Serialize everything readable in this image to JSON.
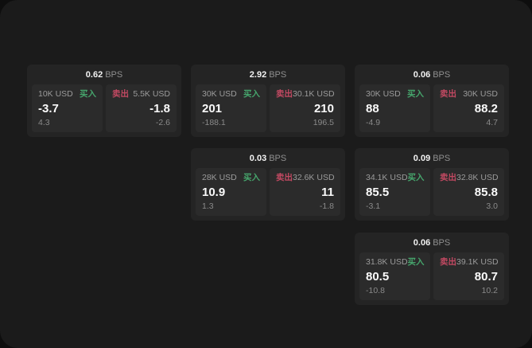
{
  "app": {
    "buy_label": "买入",
    "sell_label": "卖出",
    "unit_label": "BPS"
  },
  "colors": {
    "page_bg": "#0e0e0e",
    "panel_bg": "#1b1b1b",
    "card_bg": "#242424",
    "pane_bg": "#2b2b2b",
    "text_primary": "#fafafa",
    "text_muted": "#9b9b9b",
    "buy_green": "#46a56c",
    "sell_red": "#c24962"
  },
  "cards": [
    {
      "bps": "0.62",
      "unit": "BPS",
      "buy": {
        "amount": "10K USD",
        "label": "买入",
        "price": "-3.7",
        "delta": "4.3"
      },
      "sell": {
        "label": "卖出",
        "amount": "5.5K USD",
        "price": "-1.8",
        "delta": "-2.6"
      }
    },
    {
      "bps": "2.92",
      "unit": "BPS",
      "buy": {
        "amount": "30K USD",
        "label": "买入",
        "price": "201",
        "delta": "-188.1"
      },
      "sell": {
        "label": "卖出",
        "amount": "30.1K USD",
        "price": "210",
        "delta": "196.5"
      }
    },
    {
      "bps": "0.06",
      "unit": "BPS",
      "buy": {
        "amount": "30K USD",
        "label": "买入",
        "price": "88",
        "delta": "-4.9"
      },
      "sell": {
        "label": "卖出",
        "amount": "30K USD",
        "price": "88.2",
        "delta": "4.7"
      }
    },
    {
      "bps": "0.03",
      "unit": "BPS",
      "buy": {
        "amount": "28K USD",
        "label": "买入",
        "price": "10.9",
        "delta": "1.3"
      },
      "sell": {
        "label": "卖出",
        "amount": "32.6K USD",
        "price": "11",
        "delta": "-1.8"
      }
    },
    {
      "bps": "0.09",
      "unit": "BPS",
      "buy": {
        "amount": "34.1K USD",
        "label": "买入",
        "price": "85.5",
        "delta": "-3.1"
      },
      "sell": {
        "label": "卖出",
        "amount": "32.8K USD",
        "price": "85.8",
        "delta": "3.0"
      }
    },
    {
      "bps": "0.06",
      "unit": "BPS",
      "buy": {
        "amount": "31.8K USD",
        "label": "买入",
        "price": "80.5",
        "delta": "-10.8"
      },
      "sell": {
        "label": "卖出",
        "amount": "39.1K USD",
        "price": "80.7",
        "delta": "10.2"
      }
    }
  ]
}
